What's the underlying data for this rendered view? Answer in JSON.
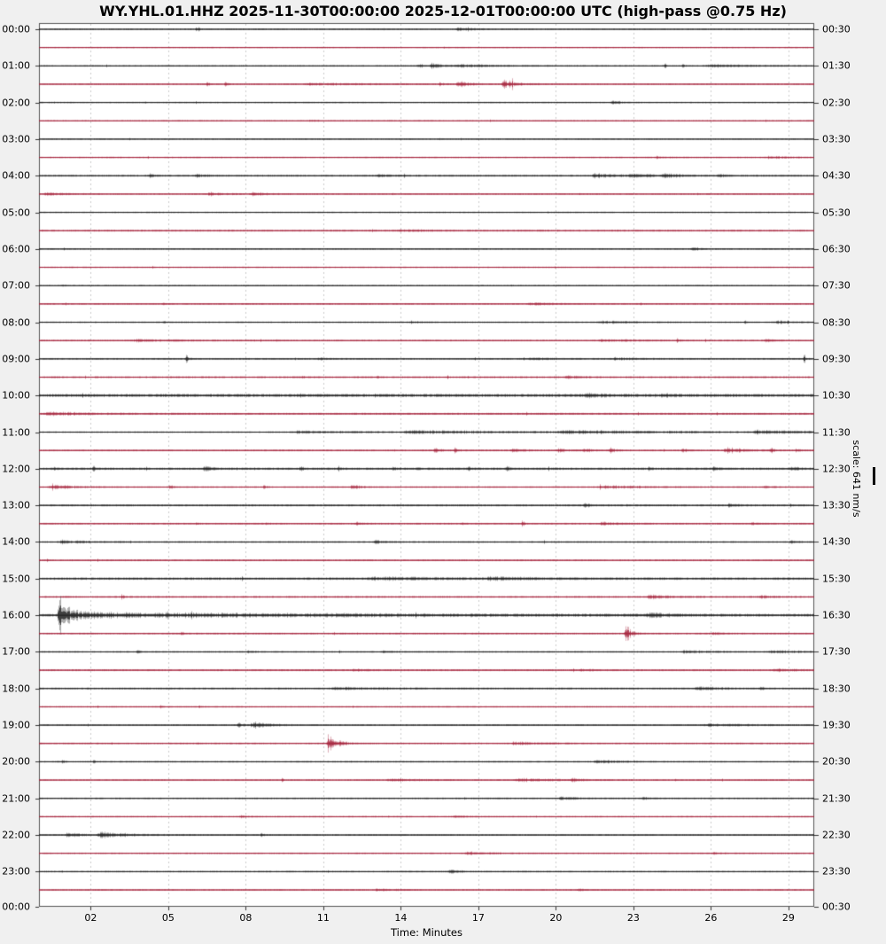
{
  "title": "WY.YHL.01.HHZ 2025-11-30T00:00:00 2025-12-01T00:00:00 UTC (high-pass @0.75 Hz)",
  "axes": {
    "x_label": "Time: Minutes",
    "x_tick_labels": [
      "02",
      "05",
      "08",
      "11",
      "14",
      "17",
      "20",
      "23",
      "26",
      "29"
    ],
    "x_tick_minutes": [
      2,
      5,
      8,
      11,
      14,
      17,
      20,
      23,
      26,
      29
    ],
    "left_labels": [
      "00:00",
      "01:00",
      "02:00",
      "03:00",
      "04:00",
      "05:00",
      "06:00",
      "07:00",
      "08:00",
      "09:00",
      "10:00",
      "11:00",
      "12:00",
      "13:00",
      "14:00",
      "15:00",
      "16:00",
      "17:00",
      "18:00",
      "19:00",
      "20:00",
      "21:00",
      "22:00",
      "23:00",
      "00:00"
    ],
    "right_labels": [
      "00:30",
      "01:30",
      "02:30",
      "03:30",
      "04:30",
      "05:30",
      "06:30",
      "07:30",
      "08:30",
      "09:30",
      "10:30",
      "11:30",
      "12:30",
      "13:30",
      "14:30",
      "15:30",
      "16:30",
      "17:30",
      "18:30",
      "19:30",
      "20:30",
      "21:30",
      "22:30",
      "23:30",
      "00:30"
    ],
    "scale_label": "scale: 641 nm/s"
  },
  "colors": {
    "background": "#f0f0f0",
    "plot_background": "#ffffff",
    "frame": "#555555",
    "grid": "#cccccc",
    "tick": "#333333",
    "black_trace": "#1c1c1c",
    "red_trace": "#a41f38",
    "text": "#000000"
  },
  "chart_data": {
    "type": "line",
    "subtype": "helicorder-dayplot",
    "station": "WY.YHL.01.HHZ",
    "time_start": "2025-11-30T00:00:00",
    "time_end": "2025-12-01T00:00:00",
    "timezone": "UTC",
    "filter": "high-pass @0.75 Hz",
    "scale": "641 nm/s",
    "minutes_per_line": 30,
    "x_range": [
      0,
      30
    ],
    "grid": "vertical-dashed",
    "legend": "none",
    "rows": [
      {
        "start": "00:00",
        "color": "black",
        "base": 0.9,
        "events": [
          [
            6.1,
            4.5,
            0.08
          ],
          [
            16.2,
            2.2,
            0.5
          ]
        ]
      },
      {
        "start": "00:30",
        "color": "red",
        "base": 0.8,
        "events": []
      },
      {
        "start": "01:00",
        "color": "black",
        "base": 0.9,
        "events": [
          [
            14.7,
            3.5,
            0.15
          ],
          [
            15.2,
            3.5,
            0.4
          ],
          [
            16.3,
            1.8,
            1.5
          ],
          [
            24.2,
            4.5,
            0.06
          ],
          [
            24.9,
            4.5,
            0.06
          ],
          [
            26.0,
            1.6,
            2.0
          ]
        ]
      },
      {
        "start": "01:30",
        "color": "red",
        "base": 0.9,
        "events": [
          [
            6.5,
            3.5,
            0.07
          ],
          [
            7.2,
            4.5,
            0.07
          ],
          [
            10.5,
            1.4,
            2.0
          ],
          [
            15.5,
            3.2,
            0.12
          ],
          [
            16.2,
            3.2,
            0.5
          ],
          [
            18.0,
            5.5,
            0.5
          ]
        ]
      },
      {
        "start": "02:00",
        "color": "black",
        "base": 0.85,
        "events": [
          [
            22.2,
            4.5,
            0.18
          ]
        ]
      },
      {
        "start": "02:30",
        "color": "red",
        "base": 0.85,
        "events": [
          [
            10.5,
            1.2,
            0.3
          ]
        ]
      },
      {
        "start": "03:00",
        "color": "black",
        "base": 0.8,
        "events": []
      },
      {
        "start": "03:30",
        "color": "red",
        "base": 0.9,
        "events": [
          [
            23.9,
            1.8,
            0.3
          ],
          [
            28.2,
            1.4,
            0.8
          ]
        ]
      },
      {
        "start": "04:00",
        "color": "black",
        "base": 1.1,
        "events": [
          [
            4.3,
            2.2,
            0.12
          ],
          [
            6.1,
            1.8,
            0.4
          ],
          [
            13.1,
            1.5,
            0.5
          ],
          [
            21.5,
            3.0,
            0.8
          ],
          [
            22.9,
            2.8,
            0.8
          ],
          [
            24.2,
            2.4,
            0.6
          ],
          [
            26.3,
            1.8,
            0.3
          ]
        ]
      },
      {
        "start": "04:30",
        "color": "red",
        "base": 0.9,
        "events": [
          [
            0.3,
            1.6,
            0.8
          ],
          [
            6.6,
            2.4,
            0.5
          ],
          [
            8.3,
            2.4,
            0.5
          ]
        ]
      },
      {
        "start": "05:00",
        "color": "black",
        "base": 0.85,
        "events": []
      },
      {
        "start": "05:30",
        "color": "red",
        "base": 1.1,
        "events": [
          [
            14.0,
            1.2,
            1.0
          ]
        ]
      },
      {
        "start": "06:00",
        "color": "black",
        "base": 0.85,
        "events": [
          [
            25.3,
            2.8,
            0.25
          ]
        ]
      },
      {
        "start": "06:30",
        "color": "red",
        "base": 0.85,
        "events": [
          [
            1.3,
            1.8,
            0.05
          ]
        ]
      },
      {
        "start": "07:00",
        "color": "black",
        "base": 0.8,
        "events": [
          [
            0.9,
            1.8,
            0.05
          ]
        ]
      },
      {
        "start": "07:30",
        "color": "red",
        "base": 0.95,
        "events": [
          [
            4.8,
            1.6,
            0.05
          ],
          [
            19.0,
            1.8,
            0.9
          ]
        ]
      },
      {
        "start": "08:00",
        "color": "black",
        "base": 0.95,
        "events": [
          [
            4.8,
            2.0,
            0.05
          ],
          [
            14.4,
            1.4,
            0.4
          ],
          [
            21.8,
            1.6,
            1.2
          ],
          [
            27.3,
            2.6,
            0.05
          ],
          [
            28.6,
            1.6,
            0.8
          ]
        ]
      },
      {
        "start": "08:30",
        "color": "red",
        "base": 0.95,
        "events": [
          [
            3.8,
            1.4,
            1.5
          ],
          [
            21.8,
            1.6,
            1.2
          ],
          [
            24.7,
            2.2,
            0.06
          ],
          [
            28.1,
            1.6,
            0.4
          ]
        ]
      },
      {
        "start": "09:00",
        "color": "black",
        "base": 1.0,
        "events": [
          [
            5.7,
            7.0,
            0.06
          ],
          [
            10.8,
            1.6,
            0.25
          ],
          [
            19.0,
            1.5,
            0.8
          ],
          [
            22.3,
            1.5,
            0.8
          ],
          [
            29.6,
            8.0,
            0.05
          ]
        ]
      },
      {
        "start": "09:30",
        "color": "red",
        "base": 1.2,
        "events": [
          [
            10.2,
            2.2,
            0.06
          ],
          [
            13.1,
            1.8,
            0.06
          ],
          [
            20.4,
            2.2,
            0.4
          ]
        ]
      },
      {
        "start": "10:00",
        "color": "black",
        "base": 1.9,
        "events": [
          [
            21.2,
            2.4,
            0.6
          ],
          [
            24.1,
            2.2,
            0.3
          ]
        ]
      },
      {
        "start": "10:30",
        "color": "red",
        "base": 1.2,
        "events": [
          [
            0.4,
            2.0,
            1.5
          ]
        ]
      },
      {
        "start": "11:00",
        "color": "black",
        "base": 1.0,
        "events": [
          [
            10.0,
            1.6,
            2.0
          ],
          [
            14.5,
            1.9,
            4.0
          ],
          [
            20.5,
            1.9,
            4.0
          ],
          [
            27.8,
            1.8,
            2.0
          ]
        ]
      },
      {
        "start": "11:30",
        "color": "red",
        "base": 1.0,
        "events": [
          [
            15.3,
            3.2,
            0.2
          ],
          [
            16.1,
            3.2,
            0.15
          ],
          [
            18.3,
            3.4,
            0.3
          ],
          [
            20.1,
            3.0,
            0.3
          ],
          [
            21.1,
            3.4,
            0.2
          ],
          [
            22.1,
            3.0,
            0.2
          ],
          [
            24.9,
            3.2,
            0.15
          ],
          [
            26.6,
            3.6,
            0.7
          ],
          [
            28.3,
            3.2,
            0.15
          ],
          [
            29.3,
            2.6,
            0.15
          ]
        ]
      },
      {
        "start": "12:00",
        "color": "black",
        "base": 1.4,
        "events": [
          [
            0.6,
            2.6,
            0.1
          ],
          [
            2.1,
            3.0,
            0.1
          ],
          [
            6.4,
            3.4,
            0.3
          ],
          [
            10.1,
            2.6,
            0.12
          ],
          [
            11.6,
            2.6,
            0.1
          ],
          [
            13.7,
            3.0,
            0.12
          ],
          [
            14.6,
            2.6,
            0.1
          ],
          [
            16.6,
            2.6,
            0.1
          ],
          [
            18.1,
            3.0,
            0.12
          ],
          [
            23.6,
            2.6,
            0.1
          ],
          [
            26.1,
            2.6,
            0.2
          ],
          [
            29.1,
            3.0,
            0.25
          ]
        ]
      },
      {
        "start": "12:30",
        "color": "red",
        "base": 1.0,
        "events": [
          [
            0.5,
            3.4,
            0.7
          ],
          [
            5.1,
            2.2,
            0.08
          ],
          [
            8.7,
            2.6,
            0.08
          ],
          [
            12.1,
            3.0,
            0.25
          ],
          [
            21.8,
            2.2,
            1.4
          ],
          [
            28.1,
            2.2,
            0.2
          ]
        ]
      },
      {
        "start": "13:00",
        "color": "black",
        "base": 1.2,
        "events": [
          [
            21.1,
            2.2,
            0.3
          ],
          [
            26.7,
            2.4,
            0.3
          ]
        ]
      },
      {
        "start": "13:30",
        "color": "red",
        "base": 1.0,
        "events": [
          [
            6.1,
            2.0,
            0.06
          ],
          [
            8.8,
            2.0,
            0.06
          ],
          [
            12.3,
            2.2,
            0.25
          ],
          [
            16.4,
            2.0,
            0.06
          ],
          [
            18.7,
            6.0,
            0.05
          ],
          [
            21.8,
            2.0,
            0.6
          ],
          [
            27.6,
            1.8,
            0.25
          ]
        ]
      },
      {
        "start": "14:00",
        "color": "black",
        "base": 1.1,
        "events": [
          [
            0.9,
            2.2,
            0.8
          ],
          [
            13.0,
            2.4,
            0.3
          ],
          [
            29.1,
            1.8,
            0.2
          ]
        ]
      },
      {
        "start": "14:30",
        "color": "red",
        "base": 1.0,
        "events": []
      },
      {
        "start": "15:00",
        "color": "black",
        "base": 1.5,
        "events": [
          [
            13.0,
            1.8,
            2.0
          ],
          [
            17.5,
            1.8,
            1.5
          ]
        ]
      },
      {
        "start": "15:30",
        "color": "red",
        "base": 1.2,
        "events": [
          [
            3.2,
            3.5,
            0.05
          ],
          [
            23.6,
            2.4,
            0.7
          ],
          [
            27.9,
            2.2,
            0.4
          ]
        ]
      },
      {
        "start": "16:00",
        "color": "black",
        "base": 1.6,
        "events": [
          [
            0.8,
            24.0,
            0.45
          ],
          [
            2.5,
            2.5,
            12.0
          ],
          [
            23.6,
            2.4,
            0.6
          ]
        ]
      },
      {
        "start": "16:30",
        "color": "red",
        "base": 1.0,
        "events": [
          [
            5.5,
            3.0,
            0.06
          ],
          [
            22.7,
            14.0,
            0.18
          ],
          [
            26.1,
            1.8,
            0.3
          ]
        ]
      },
      {
        "start": "17:00",
        "color": "black",
        "base": 1.0,
        "events": [
          [
            3.8,
            3.0,
            0.06
          ],
          [
            8.1,
            1.6,
            0.2
          ],
          [
            13.3,
            1.6,
            0.3
          ],
          [
            25.0,
            1.6,
            1.2
          ],
          [
            28.4,
            1.8,
            1.0
          ]
        ]
      },
      {
        "start": "17:30",
        "color": "red",
        "base": 1.1,
        "events": [
          [
            12.2,
            1.6,
            0.4
          ],
          [
            21.0,
            1.4,
            0.4
          ],
          [
            28.5,
            1.6,
            0.8
          ]
        ]
      },
      {
        "start": "18:00",
        "color": "black",
        "base": 1.1,
        "events": [
          [
            11.5,
            1.4,
            2.0
          ],
          [
            25.5,
            2.6,
            0.7
          ],
          [
            27.9,
            1.6,
            0.2
          ]
        ]
      },
      {
        "start": "18:30",
        "color": "red",
        "base": 0.9,
        "events": [
          [
            4.7,
            1.8,
            0.05
          ],
          [
            6.2,
            1.6,
            0.05
          ]
        ]
      },
      {
        "start": "19:00",
        "color": "black",
        "base": 1.0,
        "events": [
          [
            7.7,
            3.5,
            0.2
          ],
          [
            8.3,
            4.5,
            0.5
          ],
          [
            25.9,
            2.0,
            1.2
          ]
        ]
      },
      {
        "start": "19:30",
        "color": "red",
        "base": 0.95,
        "events": [
          [
            11.2,
            14.0,
            0.3
          ],
          [
            18.4,
            2.2,
            0.9
          ]
        ]
      },
      {
        "start": "20:00",
        "color": "black",
        "base": 0.95,
        "events": [
          [
            0.9,
            2.6,
            0.05
          ],
          [
            2.1,
            2.6,
            0.05
          ],
          [
            21.6,
            1.9,
            0.9
          ],
          [
            29.2,
            1.8,
            0.06
          ]
        ]
      },
      {
        "start": "20:30",
        "color": "red",
        "base": 0.9,
        "events": [
          [
            9.4,
            2.4,
            0.05
          ],
          [
            13.6,
            1.7,
            1.0
          ],
          [
            18.6,
            2.2,
            1.3
          ],
          [
            20.6,
            2.0,
            0.4
          ]
        ]
      },
      {
        "start": "21:00",
        "color": "black",
        "base": 0.95,
        "events": [
          [
            20.2,
            2.2,
            0.5
          ],
          [
            23.4,
            2.2,
            0.25
          ]
        ]
      },
      {
        "start": "21:30",
        "color": "red",
        "base": 0.9,
        "events": [
          [
            7.8,
            1.6,
            0.2
          ],
          [
            16.1,
            1.6,
            0.4
          ]
        ]
      },
      {
        "start": "22:00",
        "color": "black",
        "base": 1.0,
        "events": [
          [
            1.1,
            3.6,
            0.4
          ],
          [
            2.4,
            4.0,
            0.9
          ],
          [
            8.6,
            3.4,
            0.06
          ]
        ]
      },
      {
        "start": "22:30",
        "color": "red",
        "base": 0.9,
        "events": [
          [
            16.6,
            1.8,
            0.9
          ],
          [
            26.1,
            1.5,
            0.25
          ]
        ]
      },
      {
        "start": "23:00",
        "color": "black",
        "base": 0.95,
        "events": [
          [
            15.9,
            4.0,
            0.3
          ]
        ]
      },
      {
        "start": "23:30",
        "color": "red",
        "base": 0.9,
        "events": [
          [
            13.1,
            1.6,
            0.6
          ],
          [
            20.9,
            1.4,
            0.3
          ]
        ]
      }
    ]
  }
}
